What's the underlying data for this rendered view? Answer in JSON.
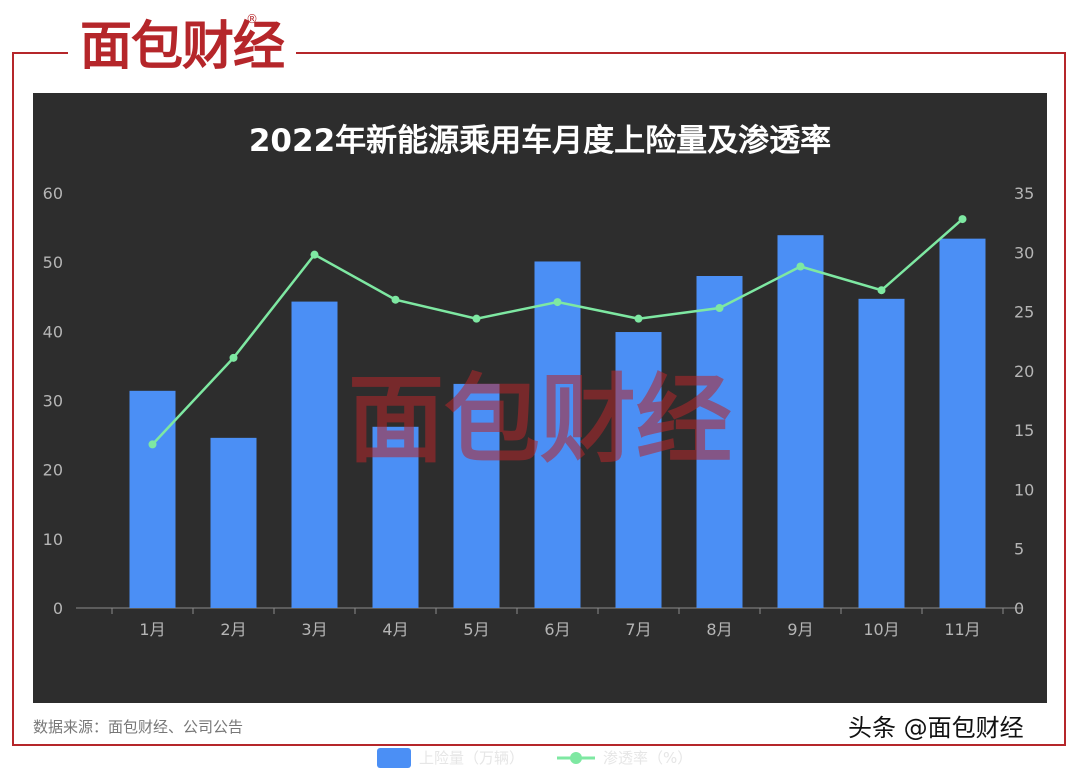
{
  "brand": {
    "logo_text": "面包财经",
    "registered": "®"
  },
  "footer": {
    "source": "数据来源：面包财经、公司公告",
    "credit": "头条 @面包财经"
  },
  "colors": {
    "frame": "#b5262a",
    "panel": "#2d2d2d",
    "bar": "#4b8ff5",
    "line": "#7ee8a2",
    "axis_text": "#b5b5b5",
    "watermark": "#b5262a"
  },
  "chart_data": {
    "type": "bar",
    "title": "2022年新能源乘用车月度上险量及渗透率",
    "categories": [
      "1月",
      "2月",
      "3月",
      "4月",
      "5月",
      "6月",
      "7月",
      "8月",
      "9月",
      "10月",
      "11月"
    ],
    "series": [
      {
        "name": "上险量（万辆）",
        "type": "bar",
        "axis": "left",
        "values": [
          31.4,
          24.6,
          44.3,
          26.2,
          32.4,
          50.1,
          39.9,
          48.0,
          53.9,
          44.7,
          53.4
        ]
      },
      {
        "name": "渗透率（%）",
        "type": "line",
        "axis": "right",
        "values": [
          13.8,
          21.1,
          29.8,
          26.0,
          24.4,
          25.8,
          24.4,
          25.3,
          28.8,
          26.8,
          32.8
        ]
      }
    ],
    "y_left": {
      "ylim": [
        0,
        60
      ],
      "ticks": [
        "0",
        "10",
        "20",
        "30",
        "40",
        "50",
        "60"
      ]
    },
    "y_right": {
      "ylim": [
        0,
        35
      ],
      "ticks": [
        "0",
        "5",
        "10",
        "15",
        "20",
        "25",
        "30",
        "35"
      ]
    },
    "legend": "bottom-center",
    "grid": false
  }
}
